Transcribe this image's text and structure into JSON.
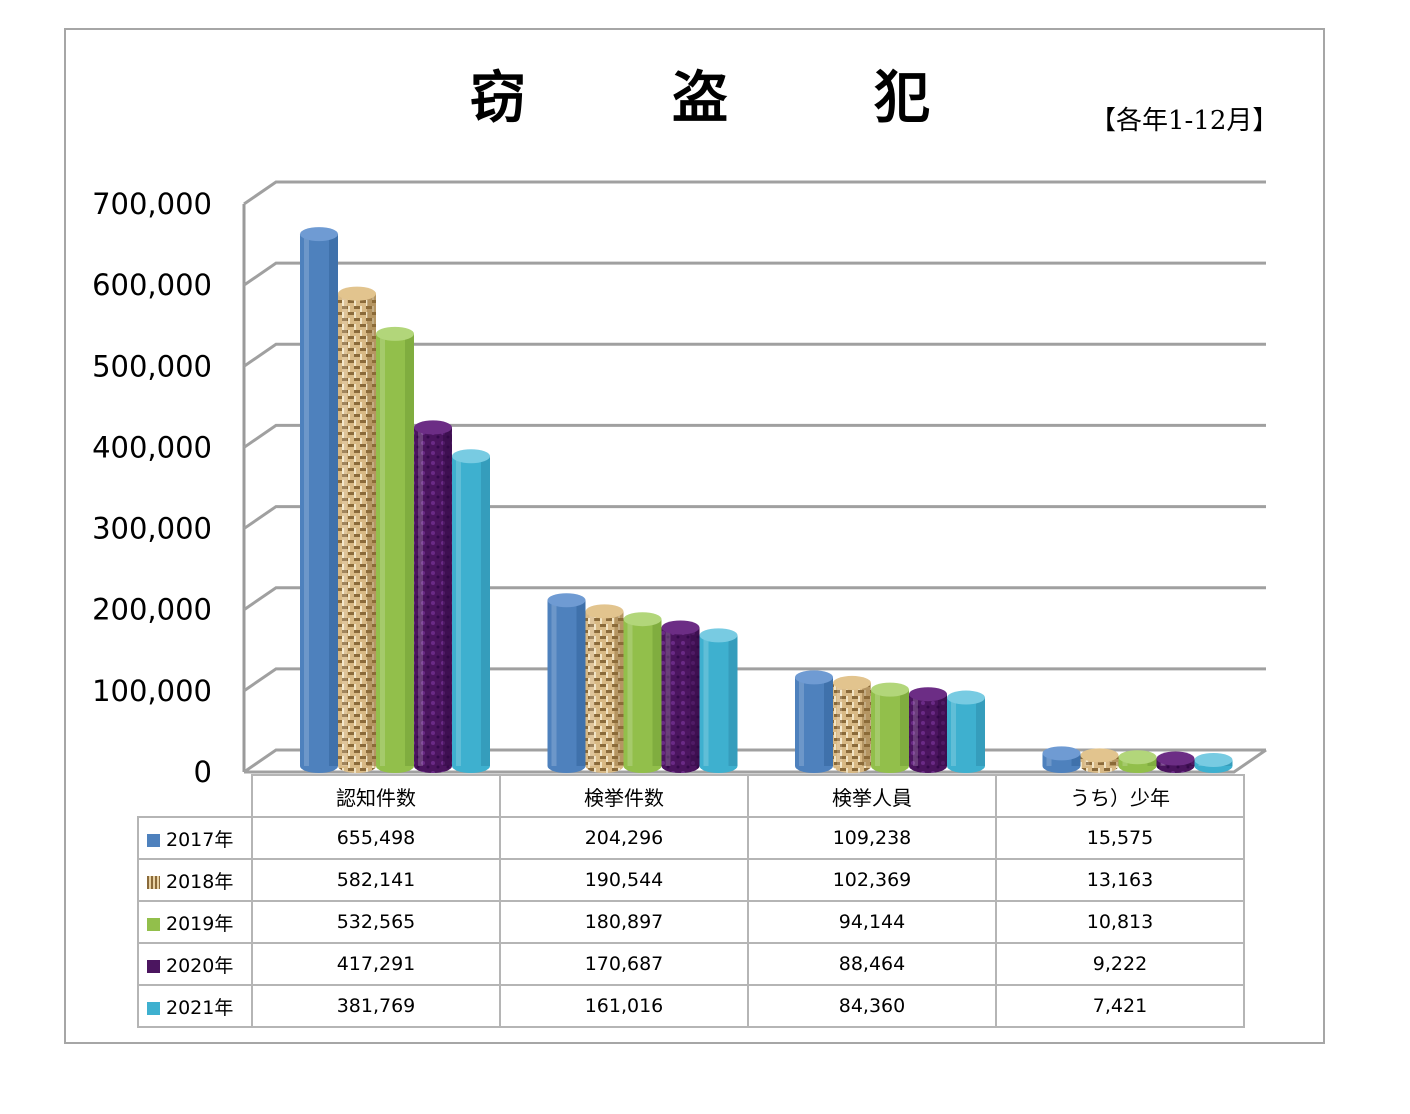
{
  "title_chars": [
    "窃",
    "盗",
    "犯"
  ],
  "period": "【各年1-12月】",
  "chart_data": {
    "type": "bar",
    "title": "窃　盗　犯",
    "categories": [
      "認知件数",
      "検挙件数",
      "検挙人員",
      "うち）少年"
    ],
    "series": [
      {
        "name": "2017年",
        "values": [
          655498,
          204296,
          109238,
          15575
        ],
        "color": "#4e81bd"
      },
      {
        "name": "2018年",
        "values": [
          582141,
          190544,
          102369,
          13163
        ],
        "color": "#c8a46a"
      },
      {
        "name": "2019年",
        "values": [
          532565,
          180897,
          94144,
          10813
        ],
        "color": "#92bf4b"
      },
      {
        "name": "2020年",
        "values": [
          417291,
          170687,
          88464,
          9222
        ],
        "color": "#4b155f"
      },
      {
        "name": "2021年",
        "values": [
          381769,
          161016,
          84360,
          7421
        ],
        "color": "#3eb0cf"
      }
    ],
    "ylim": [
      0,
      700000
    ],
    "yticks": [
      "0",
      "100,000",
      "200,000",
      "300,000",
      "400,000",
      "500,000",
      "600,000",
      "700,000"
    ],
    "grid": true,
    "legend": "table"
  },
  "table": {
    "headers": [
      "認知件数",
      "検挙件数",
      "検挙人員",
      "うち）少年"
    ],
    "rows": [
      {
        "label": "2017年",
        "cells": [
          "655,498",
          "204,296",
          "109,238",
          "15,575"
        ]
      },
      {
        "label": "2018年",
        "cells": [
          "582,141",
          "190,544",
          "102,369",
          "13,163"
        ]
      },
      {
        "label": "2019年",
        "cells": [
          "532,565",
          "180,897",
          "94,144",
          "10,813"
        ]
      },
      {
        "label": "2020年",
        "cells": [
          "417,291",
          "170,687",
          "88,464",
          "9,222"
        ]
      },
      {
        "label": "2021年",
        "cells": [
          "381,769",
          "161,016",
          "84,360",
          "7,421"
        ]
      }
    ]
  }
}
